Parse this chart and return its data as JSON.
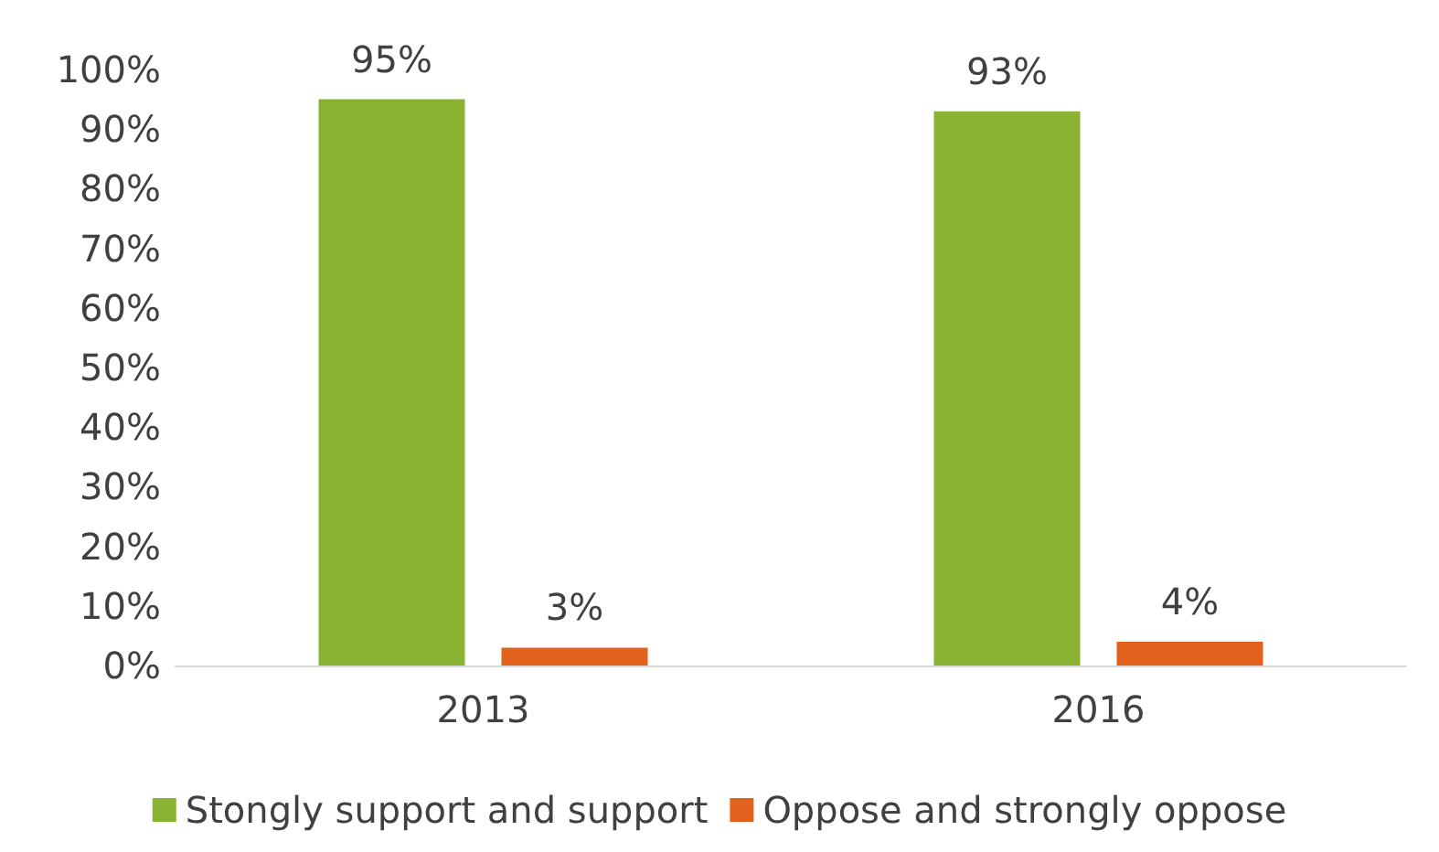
{
  "chart_data": {
    "type": "bar",
    "categories": [
      "2013",
      "2016"
    ],
    "series": [
      {
        "name": "Stongly support and support",
        "color": "#8ab332",
        "values": [
          95,
          93
        ],
        "value_labels": [
          "95%",
          "93%"
        ]
      },
      {
        "name": "Oppose and strongly oppose",
        "color": "#e2621d",
        "values": [
          3,
          4
        ],
        "value_labels": [
          "3%",
          "4%"
        ]
      }
    ],
    "ylim": [
      0,
      100
    ],
    "yticks": [
      {
        "value": 0,
        "label": "0%"
      },
      {
        "value": 10,
        "label": "10%"
      },
      {
        "value": 20,
        "label": "20%"
      },
      {
        "value": 30,
        "label": "30%"
      },
      {
        "value": 40,
        "label": "40%"
      },
      {
        "value": 50,
        "label": "50%"
      },
      {
        "value": 60,
        "label": "60%"
      },
      {
        "value": 70,
        "label": "70%"
      },
      {
        "value": 80,
        "label": "80%"
      },
      {
        "value": 90,
        "label": "90%"
      },
      {
        "value": 100,
        "label": "100%"
      }
    ],
    "grid": false,
    "legend": "bottom"
  }
}
